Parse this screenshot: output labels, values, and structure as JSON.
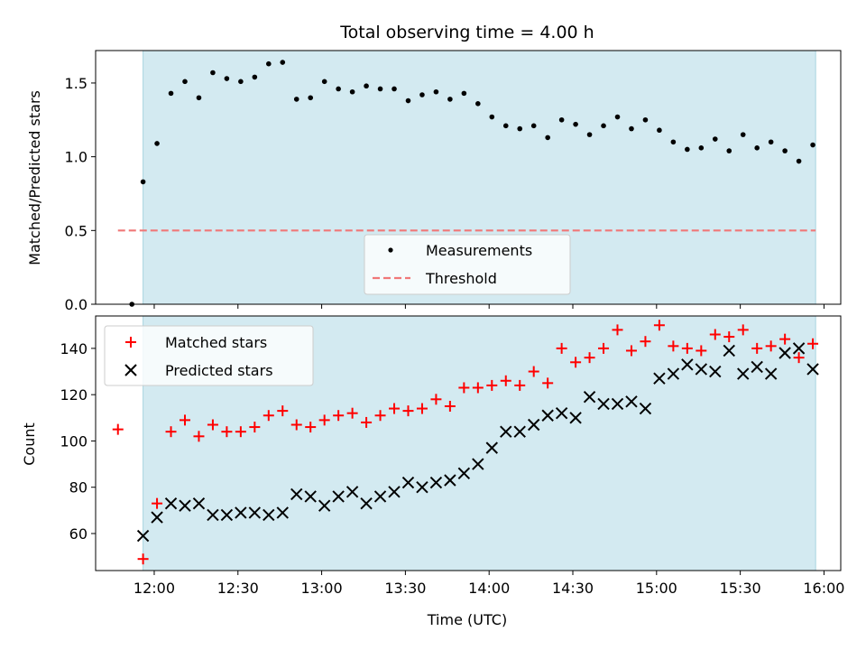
{
  "chart_data": [
    {
      "type": "scatter",
      "title": "Total observing time = 4.00 h",
      "ylabel": "Matched/Predicted stars",
      "xlabel": "",
      "ylim": [
        0,
        1.72
      ],
      "yticks": [
        0.0,
        0.5,
        1.0,
        1.5
      ],
      "ytick_labels": [
        "0.0",
        "0.5",
        "1.0",
        "1.5"
      ],
      "grid": false,
      "legend": "lower-center",
      "observing_window": [
        "11:56",
        "15:57"
      ],
      "threshold": 0.5,
      "colors": {
        "shade": "#d3eaf1",
        "measurements": "#000000",
        "threshold": "#f07878"
      },
      "series": [
        {
          "name": "Measurements",
          "x": [
            "11:52",
            "11:56",
            "12:01",
            "12:06",
            "12:11",
            "12:16",
            "12:21",
            "12:26",
            "12:31",
            "12:36",
            "12:41",
            "12:46",
            "12:51",
            "12:56",
            "13:01",
            "13:06",
            "13:11",
            "13:16",
            "13:21",
            "13:26",
            "13:31",
            "13:36",
            "13:41",
            "13:46",
            "13:51",
            "13:56",
            "14:01",
            "14:06",
            "14:11",
            "14:16",
            "14:21",
            "14:26",
            "14:31",
            "14:36",
            "14:41",
            "14:46",
            "14:51",
            "14:56",
            "15:01",
            "15:06",
            "15:11",
            "15:16",
            "15:21",
            "15:26",
            "15:31",
            "15:36",
            "15:41",
            "15:46",
            "15:51",
            "15:56"
          ],
          "values": [
            0.0,
            0.83,
            1.09,
            1.43,
            1.51,
            1.4,
            1.57,
            1.53,
            1.51,
            1.54,
            1.63,
            1.64,
            1.39,
            1.4,
            1.51,
            1.46,
            1.44,
            1.48,
            1.46,
            1.46,
            1.38,
            1.42,
            1.44,
            1.39,
            1.43,
            1.36,
            1.27,
            1.21,
            1.19,
            1.21,
            1.13,
            1.25,
            1.22,
            1.15,
            1.21,
            1.27,
            1.19,
            1.25,
            1.18,
            1.1,
            1.05,
            1.06,
            1.12,
            1.04,
            1.15,
            1.06,
            1.1,
            1.04,
            0.97,
            1.08
          ]
        },
        {
          "name": "Threshold",
          "x": [
            "11:47",
            "15:57"
          ],
          "values": [
            0.5,
            0.5
          ]
        }
      ]
    },
    {
      "type": "scatter",
      "title": "",
      "xlabel": "Time (UTC)",
      "ylabel": "Count",
      "ylim": [
        44,
        154
      ],
      "yticks": [
        60,
        80,
        100,
        120,
        140
      ],
      "xticks": [
        "12:00",
        "12:30",
        "13:00",
        "13:30",
        "14:00",
        "14:30",
        "15:00",
        "15:30",
        "16:00"
      ],
      "xlim": [
        "11:39",
        "16:06"
      ],
      "grid": false,
      "legend": "top-left",
      "colors": {
        "shade": "#d3eaf1",
        "matched": "#ff0000",
        "predicted": "#000000"
      },
      "series": [
        {
          "name": "Matched stars",
          "x": [
            "11:47",
            "11:56",
            "12:01",
            "12:06",
            "12:11",
            "12:16",
            "12:21",
            "12:26",
            "12:31",
            "12:36",
            "12:41",
            "12:46",
            "12:51",
            "12:56",
            "13:01",
            "13:06",
            "13:11",
            "13:16",
            "13:21",
            "13:26",
            "13:31",
            "13:36",
            "13:41",
            "13:46",
            "13:51",
            "13:56",
            "14:01",
            "14:06",
            "14:11",
            "14:16",
            "14:21",
            "14:26",
            "14:31",
            "14:36",
            "14:41",
            "14:46",
            "14:51",
            "14:56",
            "15:01",
            "15:06",
            "15:11",
            "15:16",
            "15:21",
            "15:26",
            "15:31",
            "15:36",
            "15:41",
            "15:46",
            "15:51",
            "15:56"
          ],
          "values": [
            105,
            49,
            73,
            104,
            109,
            102,
            107,
            104,
            104,
            106,
            111,
            113,
            107,
            106,
            109,
            111,
            112,
            108,
            111,
            114,
            113,
            114,
            118,
            115,
            123,
            123,
            124,
            126,
            124,
            130,
            125,
            140,
            134,
            136,
            140,
            148,
            139,
            143,
            150,
            141,
            140,
            139,
            146,
            145,
            148,
            140,
            141,
            144,
            136,
            142
          ]
        },
        {
          "name": "Predicted stars",
          "x": [
            "11:56",
            "12:01",
            "12:06",
            "12:11",
            "12:16",
            "12:21",
            "12:26",
            "12:31",
            "12:36",
            "12:41",
            "12:46",
            "12:51",
            "12:56",
            "13:01",
            "13:06",
            "13:11",
            "13:16",
            "13:21",
            "13:26",
            "13:31",
            "13:36",
            "13:41",
            "13:46",
            "13:51",
            "13:56",
            "14:01",
            "14:06",
            "14:11",
            "14:16",
            "14:21",
            "14:26",
            "14:31",
            "14:36",
            "14:41",
            "14:46",
            "14:51",
            "14:56",
            "15:01",
            "15:06",
            "15:11",
            "15:16",
            "15:21",
            "15:26",
            "15:31",
            "15:36",
            "15:41",
            "15:46",
            "15:51",
            "15:56"
          ],
          "values": [
            59,
            67,
            73,
            72,
            73,
            68,
            68,
            69,
            69,
            68,
            69,
            77,
            76,
            72,
            76,
            78,
            73,
            76,
            78,
            82,
            80,
            82,
            83,
            86,
            90,
            97,
            104,
            104,
            107,
            111,
            112,
            110,
            119,
            116,
            116,
            117,
            114,
            127,
            129,
            133,
            131,
            130,
            139,
            129,
            132,
            129,
            138,
            140,
            131
          ]
        }
      ]
    }
  ]
}
